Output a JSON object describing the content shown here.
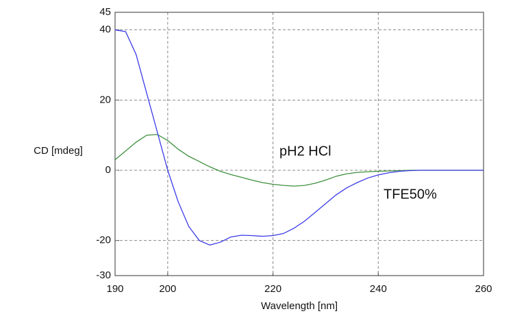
{
  "chart_data": {
    "type": "line",
    "xlabel": "Wavelength [nm]",
    "ylabel": "CD [mdeg]",
    "x": [
      190,
      192,
      194,
      196,
      198,
      200,
      202,
      204,
      206,
      208,
      210,
      212,
      214,
      216,
      218,
      220,
      222,
      224,
      226,
      228,
      230,
      232,
      234,
      236,
      238,
      240,
      242,
      244,
      246,
      248,
      250,
      252,
      254,
      256,
      258,
      260
    ],
    "series": [
      {
        "name": "pH2 HCl",
        "color": "#3c8f3c",
        "values": [
          3,
          5.5,
          8,
          10,
          10.2,
          8.5,
          6,
          4,
          2.5,
          1,
          -0.3,
          -1.2,
          -2,
          -2.8,
          -3.5,
          -4,
          -4.3,
          -4.5,
          -4.3,
          -3.7,
          -2.8,
          -1.7,
          -1,
          -0.6,
          -0.4,
          -0.3,
          -0.2,
          -0.1,
          0,
          0,
          0,
          0,
          0,
          0,
          0,
          0
        ]
      },
      {
        "name": "TFE50%",
        "color": "#3a3ae8",
        "values": [
          40,
          39.5,
          33,
          22,
          11,
          0,
          -9,
          -16,
          -20,
          -21.3,
          -20.5,
          -19,
          -18.5,
          -18.6,
          -18.8,
          -18.6,
          -18,
          -16.5,
          -14.5,
          -12,
          -9.5,
          -7,
          -5,
          -3.5,
          -2.2,
          -1.3,
          -0.7,
          -0.3,
          -0.1,
          0,
          0,
          0,
          0,
          0,
          0,
          0
        ]
      }
    ],
    "xlim": [
      190,
      260
    ],
    "xticks": [
      190,
      200,
      220,
      240,
      260
    ],
    "ylim": [
      -30,
      45
    ],
    "yticks": [
      -30,
      -20,
      0,
      20,
      40,
      45
    ],
    "grid": true
  }
}
